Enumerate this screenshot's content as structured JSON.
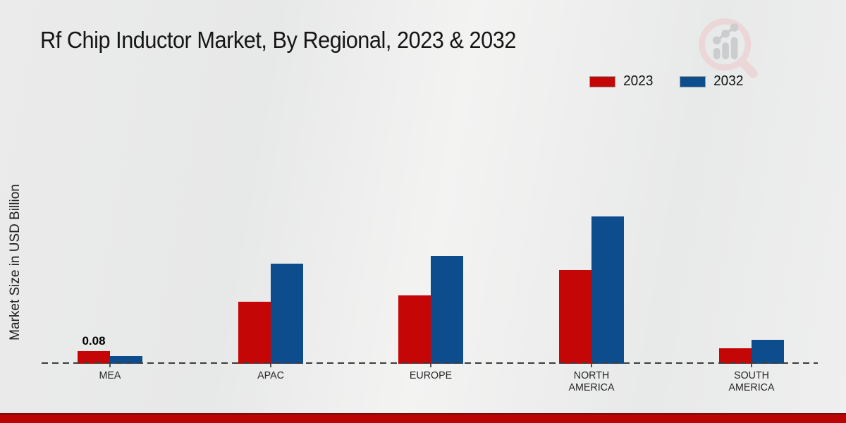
{
  "chart_data": {
    "type": "bar",
    "title": "Rf Chip Inductor Market, By Regional, 2023 & 2032",
    "ylabel": "Market Size in USD Billion",
    "xlabel": "",
    "categories": [
      "MEA",
      "APAC",
      "EUROPE",
      "NORTH AMERICA",
      "SOUTH AMERICA"
    ],
    "series": [
      {
        "name": "2023",
        "color": "#c50606",
        "values": [
          0.08,
          0.39,
          0.43,
          0.59,
          0.1
        ]
      },
      {
        "name": "2032",
        "color": "#0d4d8e",
        "values": [
          0.05,
          0.63,
          0.68,
          0.93,
          0.15
        ]
      }
    ],
    "annotations": [
      {
        "text": "0.08",
        "category": "MEA",
        "series": "2023"
      }
    ],
    "ylim": [
      0,
      1.0
    ],
    "grid": false,
    "legend_position": "top-right",
    "baseline_style": "dashed"
  },
  "legend": {
    "items": [
      {
        "label": "2023",
        "color": "#c50606"
      },
      {
        "label": "2032",
        "color": "#0d4d8e"
      }
    ]
  },
  "icons": {
    "watermark": "magnifier-bar-chart-logo"
  },
  "footer": {
    "accent_color": "#bb0404"
  }
}
